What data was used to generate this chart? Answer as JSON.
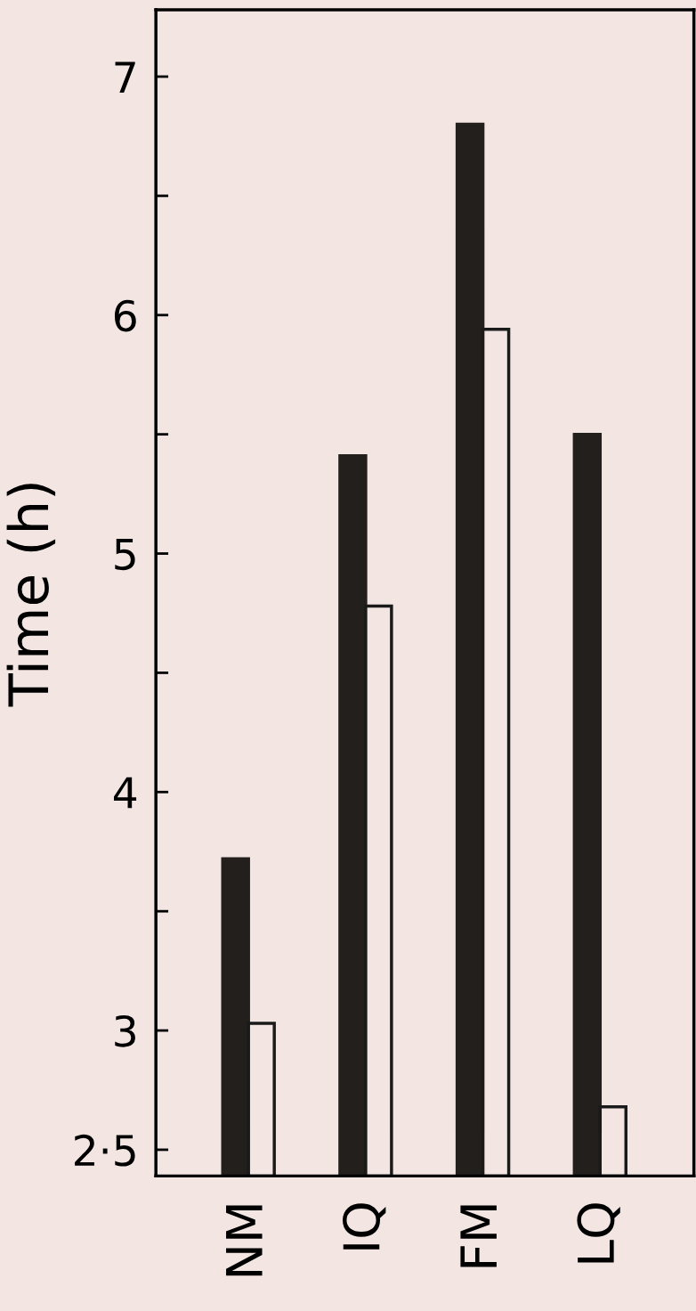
{
  "chart_data": {
    "type": "bar",
    "ylabel": "Time (h)",
    "categories": [
      "NM",
      "IQ",
      "FM",
      "LQ"
    ],
    "series": [
      {
        "color": "#231f1c",
        "values": [
          3.72,
          5.41,
          6.8,
          5.5
        ]
      },
      {
        "color": "#f3e6e2",
        "values": [
          3.03,
          4.78,
          5.94,
          2.68
        ]
      }
    ],
    "ylim": [
      2.39,
      7.28
    ],
    "yticks": [
      {
        "value": 2.5,
        "label": "2·5"
      },
      3,
      {
        "value": 3.5,
        "label": null
      },
      4,
      {
        "value": 4.5,
        "label": null
      },
      5,
      {
        "value": 5.5,
        "label": null
      },
      6,
      {
        "value": 6.5,
        "label": null
      },
      7
    ],
    "grid": false,
    "legend": false
  }
}
